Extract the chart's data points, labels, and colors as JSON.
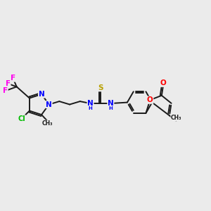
{
  "background_color": "#ebebeb",
  "bond_color": "#1a1a1a",
  "bond_width": 1.4,
  "atom_colors": {
    "N": "#0000ff",
    "O": "#ff0000",
    "S": "#b8a000",
    "Cl": "#00bb00",
    "F": "#ff00ee",
    "C": "#1a1a1a",
    "H": "#1a1a1a"
  },
  "font_size": 7.5,
  "figsize": [
    3.0,
    3.0
  ],
  "dpi": 100
}
